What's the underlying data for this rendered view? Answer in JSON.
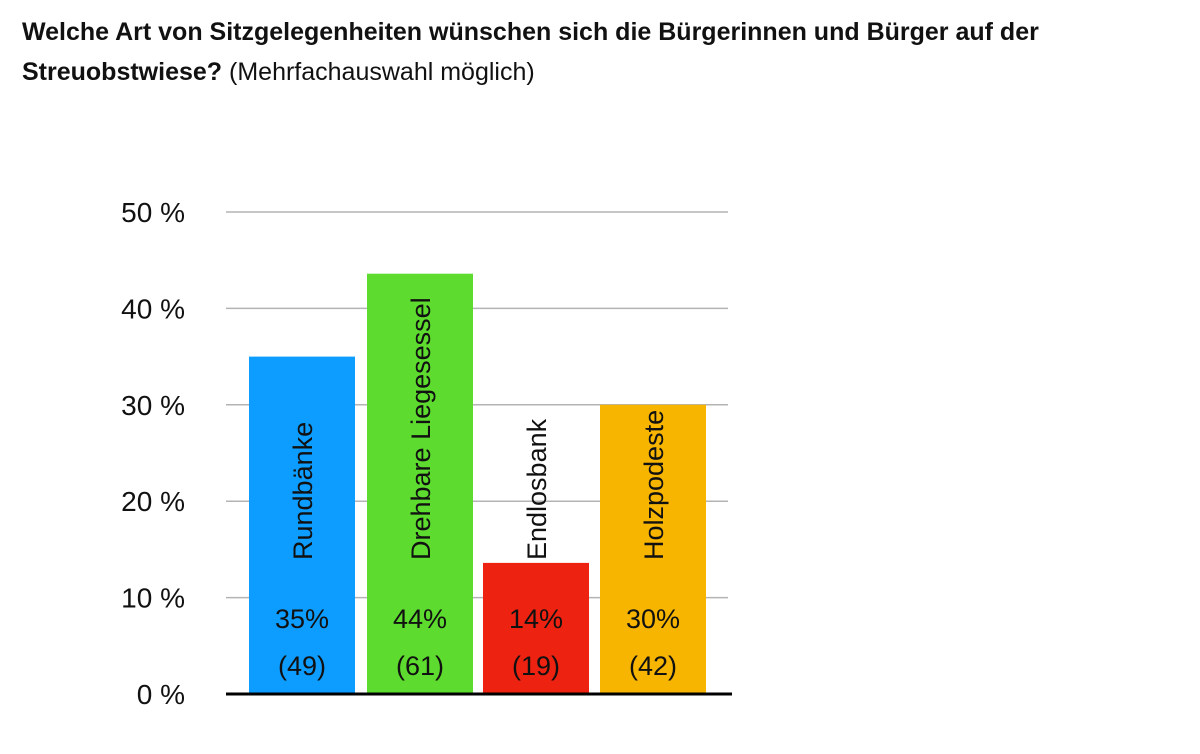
{
  "title": {
    "bold": "Welche Art von Sitzgelegenheiten wünschen sich die Bürgerinnen und Bürger auf der Streuobstwiese?",
    "normal": "(Mehrfachauswahl möglich)"
  },
  "chart_data": {
    "type": "bar",
    "title": "Welche Art von Sitzgelegenheiten wünschen sich die Bürgerinnen und Bürger auf der Streuobstwiese? (Mehrfachauswahl möglich)",
    "categories": [
      "Rundbänke",
      "Drehbare Liegesessel",
      "Endlosbank",
      "Holzpodeste"
    ],
    "values": [
      35,
      43.6,
      13.6,
      30
    ],
    "value_labels": [
      "35%",
      "44%",
      "14%",
      "30%"
    ],
    "count_labels": [
      "(49)",
      "(61)",
      "(19)",
      "(42)"
    ],
    "colors": [
      "#0d9cff",
      "#5ddb2e",
      "#ee2211",
      "#f7b500"
    ],
    "ylim": [
      0,
      50
    ],
    "yticks": [
      "0 %",
      "10 %",
      "20 %",
      "30 %",
      "40 %",
      "50 %"
    ],
    "grid": true,
    "legend": "none",
    "xlabel": "",
    "ylabel": ""
  }
}
